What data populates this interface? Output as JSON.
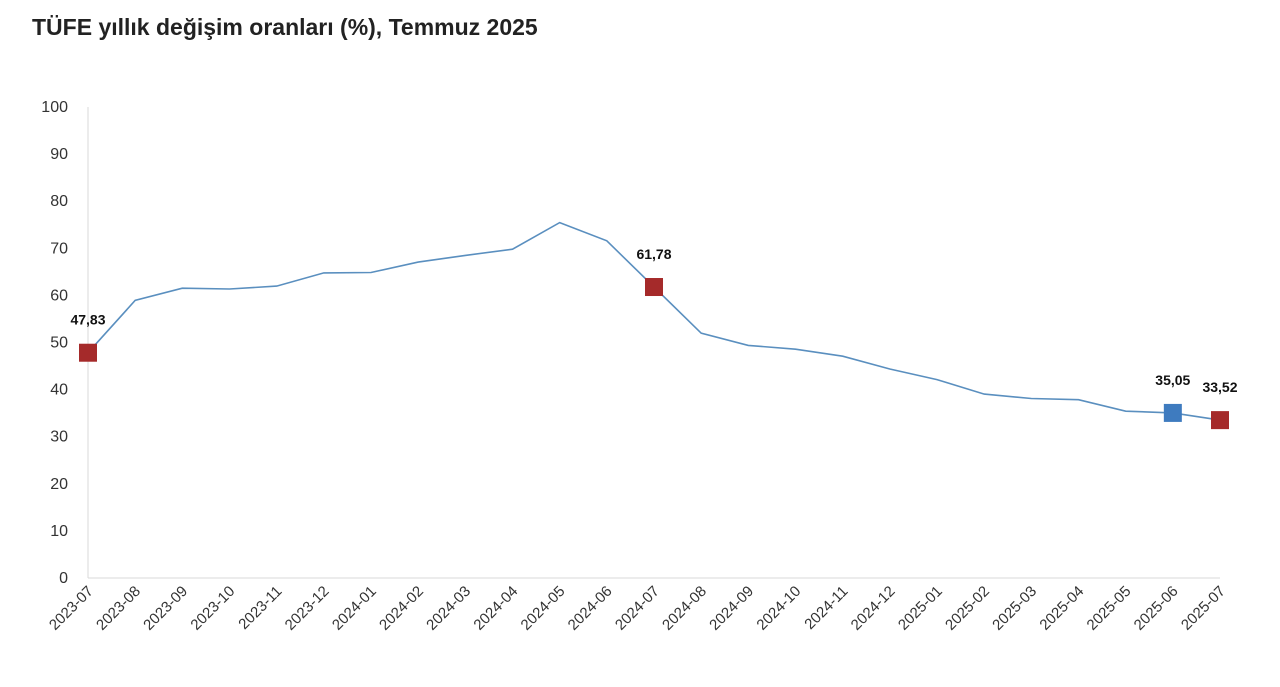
{
  "chart_data": {
    "type": "line",
    "title": "TÜFE yıllık değişim oranları (%), Temmuz 2025",
    "xlabel": "",
    "ylabel": "",
    "ylim": [
      0,
      100
    ],
    "yticks": [
      0,
      10,
      20,
      30,
      40,
      50,
      60,
      70,
      80,
      90,
      100
    ],
    "grid": false,
    "legend": "none",
    "categories": [
      "2023-07",
      "2023-08",
      "2023-09",
      "2023-10",
      "2023-11",
      "2023-12",
      "2024-01",
      "2024-02",
      "2024-03",
      "2024-04",
      "2024-05",
      "2024-06",
      "2024-07",
      "2024-08",
      "2024-09",
      "2024-10",
      "2024-11",
      "2024-12",
      "2025-01",
      "2025-02",
      "2025-03",
      "2025-04",
      "2025-05",
      "2025-06",
      "2025-07"
    ],
    "values": [
      47.83,
      58.94,
      61.53,
      61.36,
      61.98,
      64.77,
      64.86,
      67.07,
      68.5,
      69.8,
      75.45,
      71.6,
      61.78,
      51.97,
      49.38,
      48.58,
      47.09,
      44.38,
      42.12,
      39.05,
      38.1,
      37.86,
      35.41,
      35.05,
      33.52
    ],
    "line_color": "#5a8fbf",
    "markers": [
      {
        "index": 0,
        "label": "47,83",
        "color": "#a52a2a"
      },
      {
        "index": 12,
        "label": "61,78",
        "color": "#a52a2a"
      },
      {
        "index": 23,
        "label": "35,05",
        "color": "#3e7bbf"
      },
      {
        "index": 24,
        "label": "33,52",
        "color": "#a52a2a"
      }
    ]
  }
}
